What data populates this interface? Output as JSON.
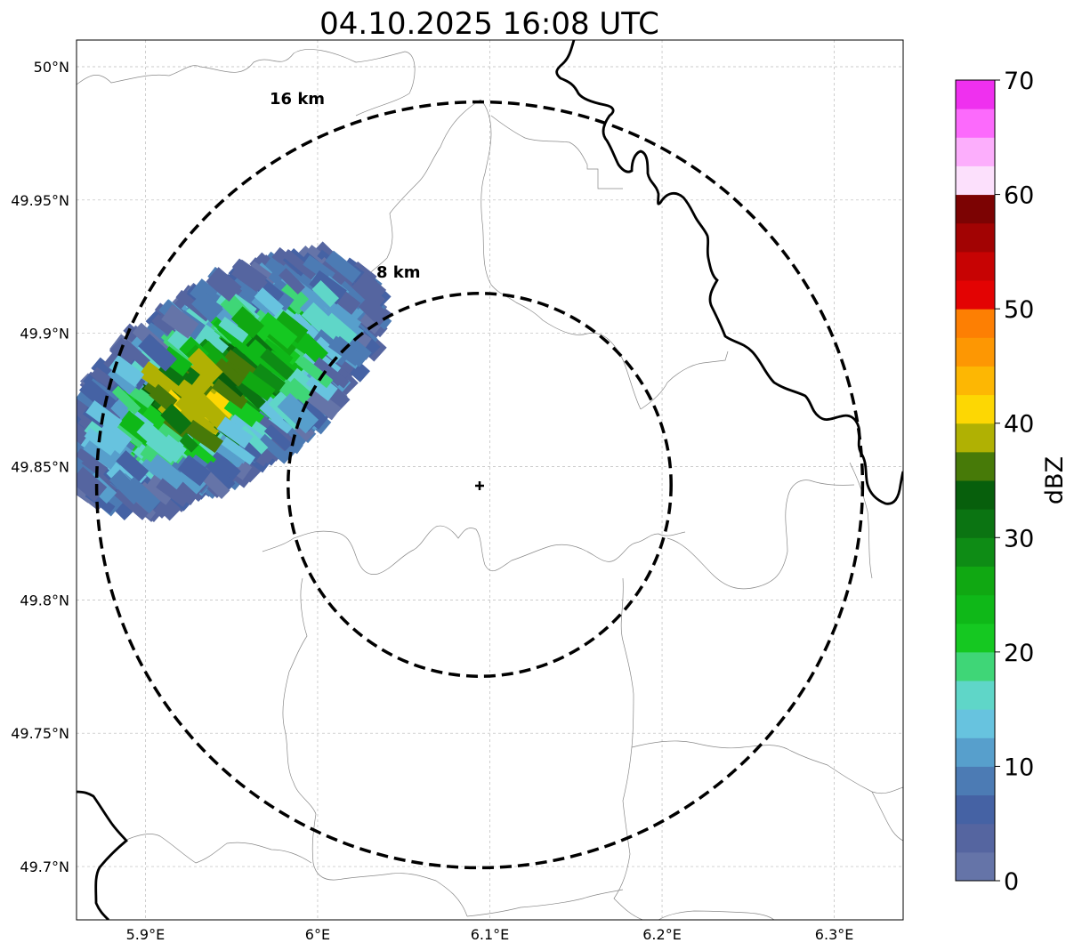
{
  "title": "04.10.2025 16:08 UTC",
  "axes": {
    "lon_ticks": [
      {
        "value": 5.9,
        "label": "5.9°E"
      },
      {
        "value": 6.0,
        "label": "6°E"
      },
      {
        "value": 6.1,
        "label": "6.1°E"
      },
      {
        "value": 6.2,
        "label": "6.2°E"
      },
      {
        "value": 6.3,
        "label": "6.3°E"
      }
    ],
    "lat_ticks": [
      {
        "value": 50.0,
        "label": "50°N"
      },
      {
        "value": 49.95,
        "label": "49.95°N"
      },
      {
        "value": 49.9,
        "label": "49.9°N"
      },
      {
        "value": 49.85,
        "label": "49.85°N"
      },
      {
        "value": 49.8,
        "label": "49.8°N"
      },
      {
        "value": 49.75,
        "label": "49.75°N"
      },
      {
        "value": 49.7,
        "label": "49.7°N"
      }
    ],
    "lon_range": [
      5.86,
      6.34
    ],
    "lat_range": [
      49.68,
      50.01
    ],
    "grid": true
  },
  "radar": {
    "center_lon": 6.095,
    "center_lat": 49.843,
    "rings": [
      {
        "radius_km": 8,
        "label": "8 km"
      },
      {
        "radius_km": 16,
        "label": "16 km"
      }
    ]
  },
  "colorbar": {
    "label": "dBZ",
    "min": 0,
    "max": 70,
    "ticks": [
      {
        "value": 0,
        "label": "0"
      },
      {
        "value": 10,
        "label": "10"
      },
      {
        "value": 20,
        "label": "20"
      },
      {
        "value": 30,
        "label": "30"
      },
      {
        "value": 40,
        "label": "40"
      },
      {
        "value": 50,
        "label": "50"
      },
      {
        "value": 60,
        "label": "60"
      },
      {
        "value": 70,
        "label": "70"
      }
    ],
    "colors": [
      "#6574a8",
      "#5565a0",
      "#4562a4",
      "#4c7bb4",
      "#579fcc",
      "#67c3df",
      "#5fd6c8",
      "#3fd677",
      "#15c821",
      "#0fb818",
      "#10a812",
      "#0e8c15",
      "#0b7412",
      "#075f0c",
      "#477a08",
      "#b0b103",
      "#fdd703",
      "#fdb703",
      "#fd9703",
      "#fd7f03",
      "#e30303",
      "#c70303",
      "#a20303",
      "#7c0303",
      "#fce0fc",
      "#fcaefc",
      "#fc6afc",
      "#ef30ef"
    ]
  }
}
